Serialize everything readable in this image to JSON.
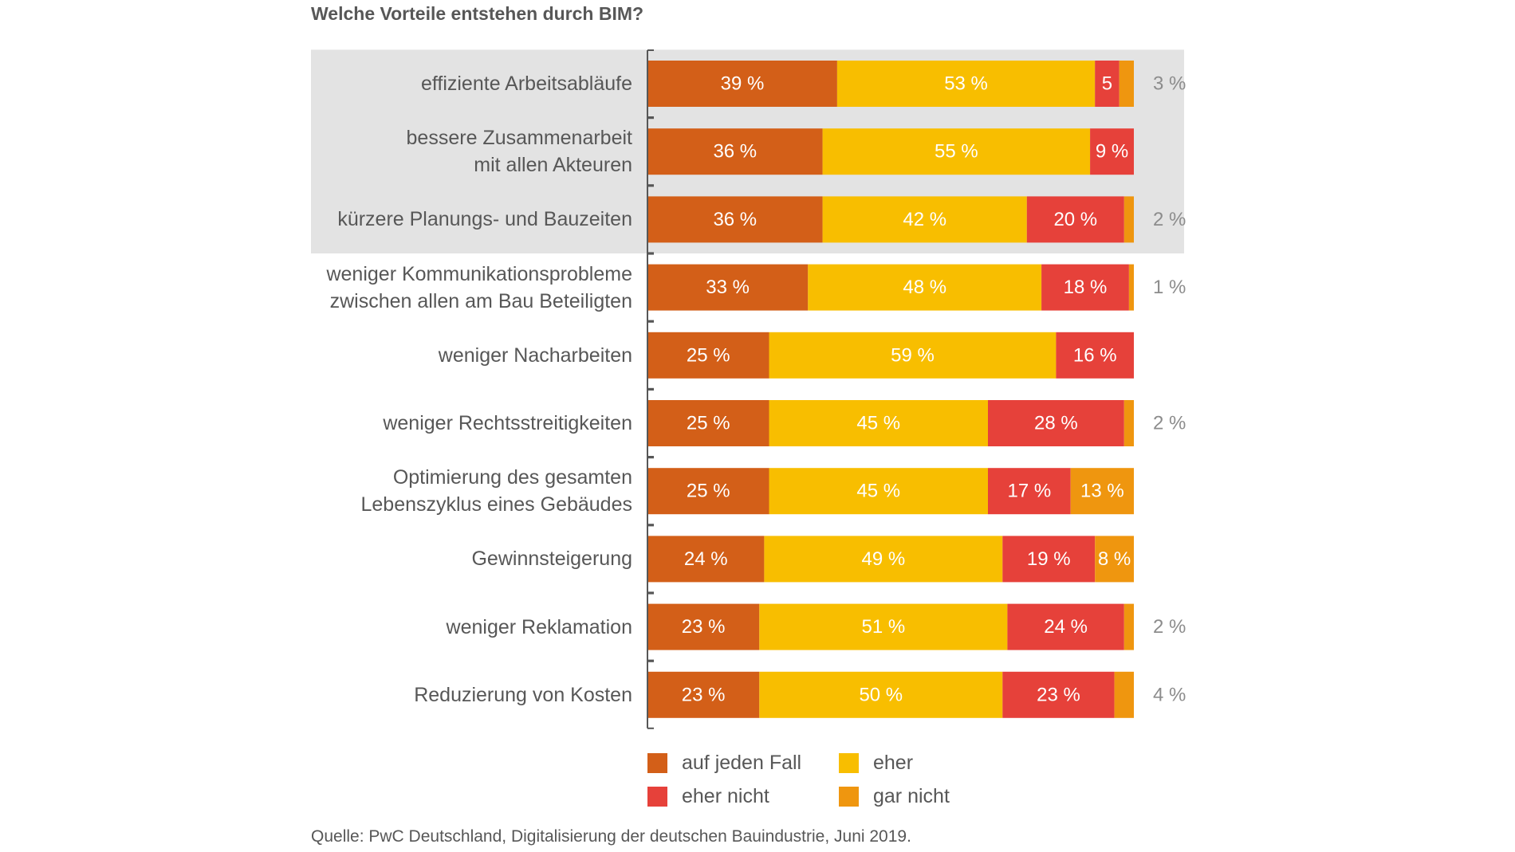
{
  "chart_data": {
    "type": "bar",
    "orientation": "horizontal",
    "stacked": true,
    "title": "Welche Vorteile entstehen durch BIM?",
    "categories": [
      "effiziente Arbeitsabläufe",
      "bessere Zusammenarbeit\nmit allen Akteuren",
      "kürzere Planungs- und Bauzeiten",
      "weniger Kommunikationsprobleme\nzwischen allen am Bau Beteiligten",
      "weniger Nacharbeiten",
      "weniger Rechtsstreitigkeiten",
      "Optimierung des gesamten\nLebenszyklus eines Gebäudes",
      "Gewinnsteigerung",
      "weniger Reklamation",
      "Reduzierung von Kosten"
    ],
    "highlighted_categories": [
      0,
      1,
      2
    ],
    "series": [
      {
        "name": "auf jeden Fall",
        "color": "#D35F18",
        "values": [
          39,
          36,
          36,
          33,
          25,
          25,
          25,
          24,
          23,
          23
        ],
        "labels": [
          "39 %",
          "36 %",
          "36 %",
          "33 %",
          "25 %",
          "25 %",
          "25 %",
          "24 %",
          "23 %",
          "23 %"
        ]
      },
      {
        "name": "eher",
        "color": "#F8BE00",
        "values": [
          53,
          55,
          42,
          48,
          59,
          45,
          45,
          49,
          51,
          50
        ],
        "labels": [
          "53 %",
          "55 %",
          "42 %",
          "48 %",
          "59 %",
          "45 %",
          "45 %",
          "49 %",
          "51 %",
          "50 %"
        ]
      },
      {
        "name": "eher nicht",
        "color": "#E6413A",
        "values": [
          5,
          9,
          20,
          18,
          16,
          28,
          17,
          19,
          24,
          23
        ],
        "labels": [
          "5",
          "9 %",
          "20 %",
          "18 %",
          "16 %",
          "28 %",
          "17 %",
          "19 %",
          "24 %",
          "23 %"
        ]
      },
      {
        "name": "gar nicht",
        "color": "#EF960F",
        "values": [
          3,
          0,
          2,
          1,
          0,
          2,
          13,
          8,
          2,
          4
        ],
        "labels": [
          "3 %",
          "",
          "2 %",
          "1 %",
          "",
          "2 %",
          "13 %",
          "8 %",
          "2 %",
          "4 %"
        ],
        "label_outside": [
          true,
          false,
          true,
          true,
          false,
          true,
          false,
          false,
          true,
          true
        ]
      }
    ],
    "xlim": [
      0,
      100
    ],
    "xlabel": "",
    "ylabel": "",
    "legend": {
      "placement": "bottom",
      "entries": [
        "auf jeden Fall",
        "eher",
        "eher nicht",
        "gar nicht"
      ]
    }
  },
  "legend_labels": {
    "auf_jeden_fall": "auf jeden Fall",
    "eher": "eher",
    "eher_nicht": "eher nicht",
    "gar_nicht": "gar nicht"
  },
  "colors": {
    "auf_jeden_fall": "#D35F18",
    "eher": "#F8BE00",
    "eher_nicht": "#E6413A",
    "gar_nicht": "#EF960F",
    "highlight_background": "#E3E3E3",
    "axis": "#575757",
    "text": "#575757",
    "outside_label": "#8C8C8C"
  },
  "source": "Quelle: PwC Deutschland, Digitalisierung der deutschen Bauindustrie, Juni 2019."
}
